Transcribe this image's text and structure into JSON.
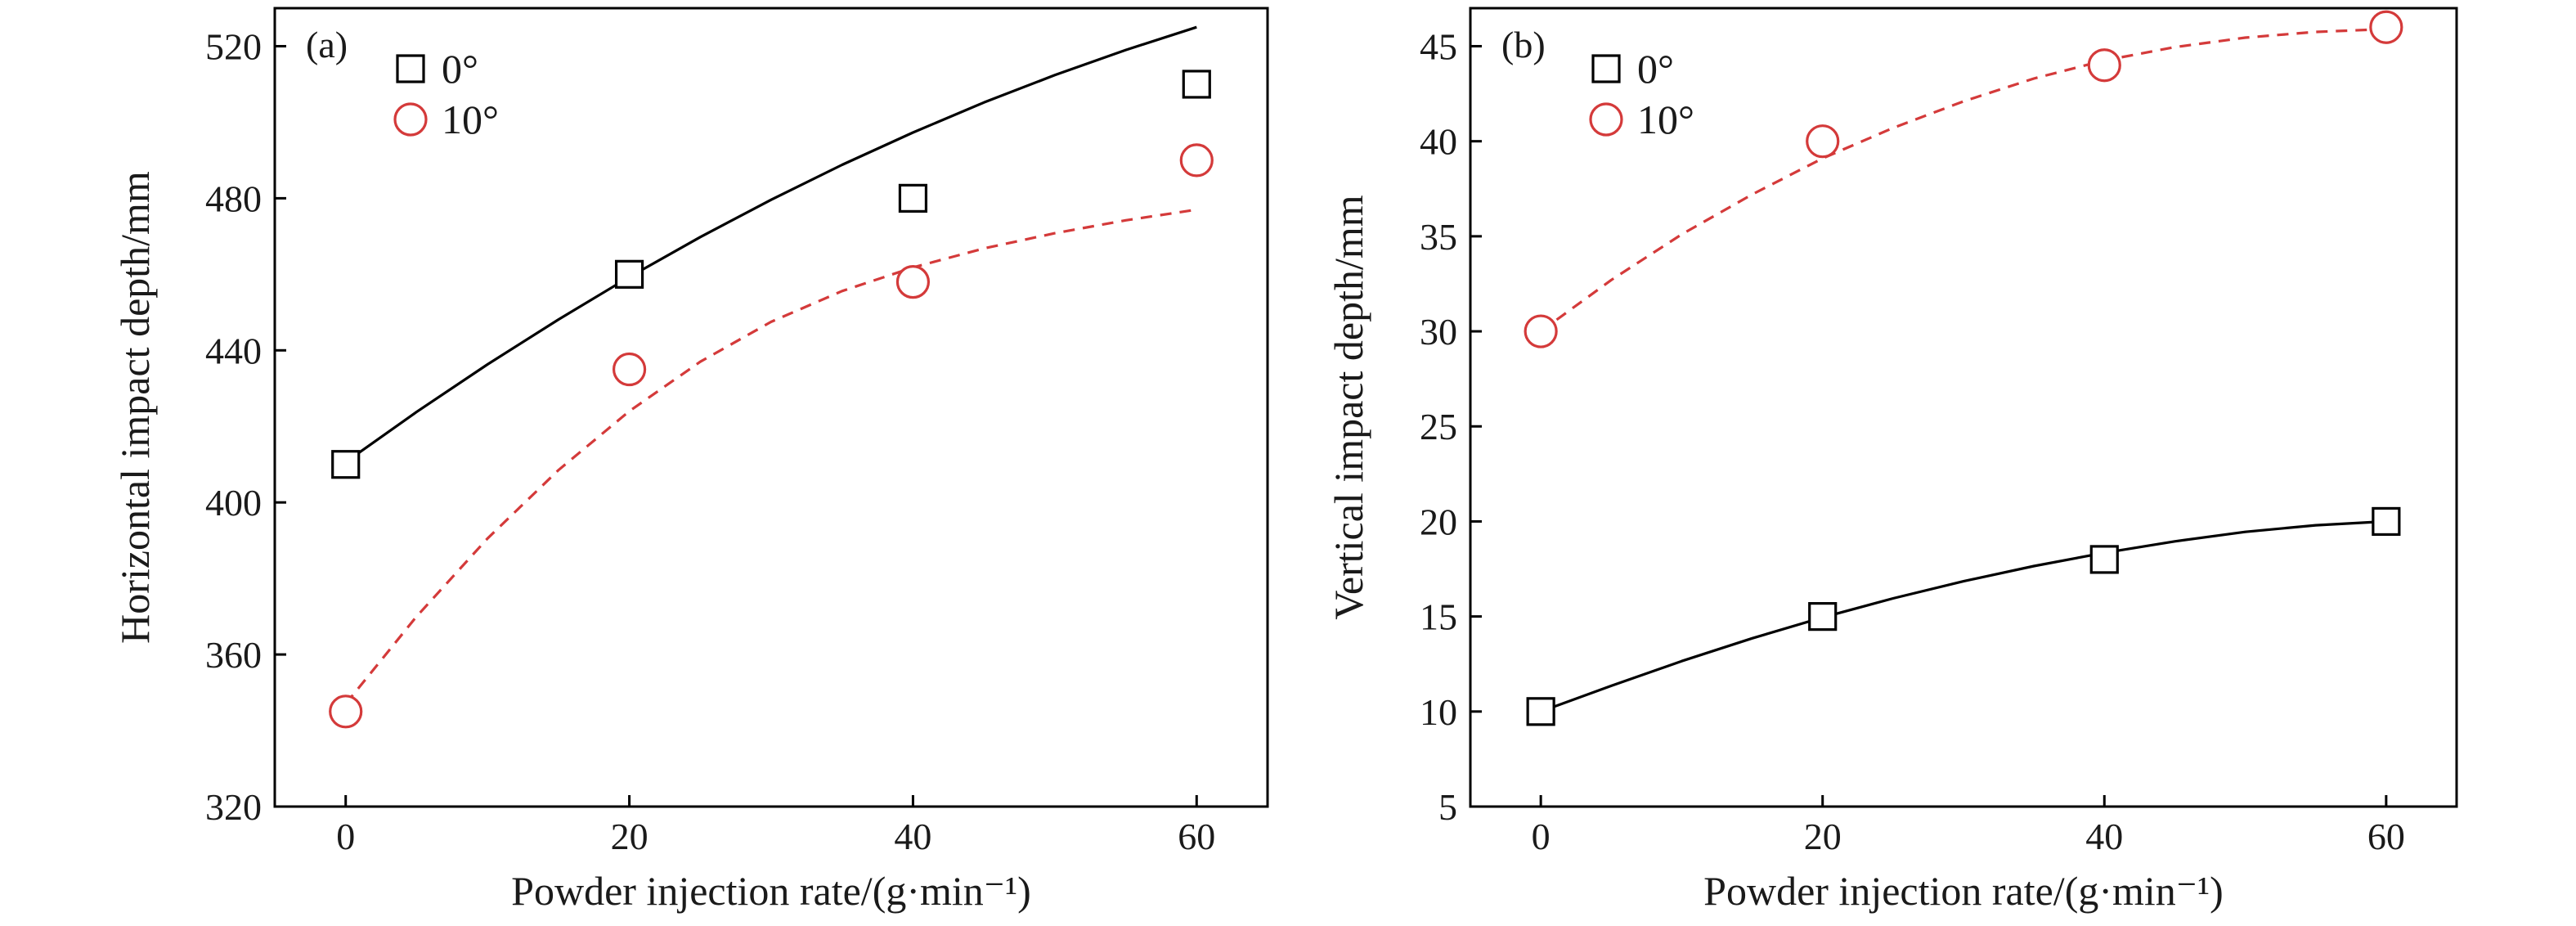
{
  "chart_data": [
    {
      "type": "scatter",
      "panel_label": "(a)",
      "xlabel": "Powder injection rate/(g·min⁻¹)",
      "ylabel": "Horizontal impact depth/mm",
      "xlim": [
        -5,
        65
      ],
      "ylim": [
        320,
        530
      ],
      "xticks": [
        0,
        20,
        40,
        60
      ],
      "yticks": [
        320,
        360,
        400,
        440,
        480,
        520
      ],
      "grid": false,
      "legend": "top-left",
      "series": [
        {
          "name": "0°",
          "marker": "square",
          "line": "solid",
          "color": "#000000",
          "x": [
            0,
            20,
            40,
            60
          ],
          "y": [
            410,
            460,
            480,
            510
          ],
          "fit": [
            410.6,
            423.8,
            436.3,
            448.1,
            459.3,
            469.8,
            479.6,
            488.8,
            497.3,
            505.2,
            512.4,
            519.0,
            525.0
          ]
        },
        {
          "name": "10°",
          "marker": "circle",
          "line": "dashed",
          "color": "#d43a3a",
          "x": [
            0,
            20,
            40,
            60
          ],
          "y": [
            345,
            435,
            458,
            490
          ],
          "fit": [
            347.0,
            370.0,
            390.5,
            408.5,
            424.0,
            437.0,
            447.5,
            455.6,
            461.8,
            466.8,
            470.8,
            474.2,
            477.0
          ]
        }
      ]
    },
    {
      "type": "scatter",
      "panel_label": "(b)",
      "xlabel": "Powder injection rate/(g·min⁻¹)",
      "ylabel": "Vertical impact depth/mm",
      "xlim": [
        -5,
        65
      ],
      "ylim": [
        5,
        47
      ],
      "xticks": [
        0,
        20,
        40,
        60
      ],
      "yticks": [
        5,
        10,
        15,
        20,
        25,
        30,
        35,
        40,
        45
      ],
      "grid": false,
      "legend": "top-left",
      "series": [
        {
          "name": "0°",
          "marker": "square",
          "line": "solid",
          "color": "#000000",
          "x": [
            0,
            20,
            40,
            60
          ],
          "y": [
            10,
            15,
            18,
            20
          ],
          "fit": [
            10.0,
            11.35,
            12.65,
            13.85,
            14.95,
            15.95,
            16.85,
            17.65,
            18.35,
            18.95,
            19.45,
            19.8,
            20.0
          ]
        },
        {
          "name": "10°",
          "marker": "circle",
          "line": "dashed",
          "color": "#d43a3a",
          "x": [
            0,
            20,
            40,
            60
          ],
          "y": [
            30,
            40,
            44,
            46
          ],
          "fit": [
            30.0,
            32.7,
            35.1,
            37.2,
            39.1,
            40.7,
            42.1,
            43.3,
            44.25,
            44.95,
            45.45,
            45.75,
            45.9
          ]
        }
      ]
    }
  ]
}
